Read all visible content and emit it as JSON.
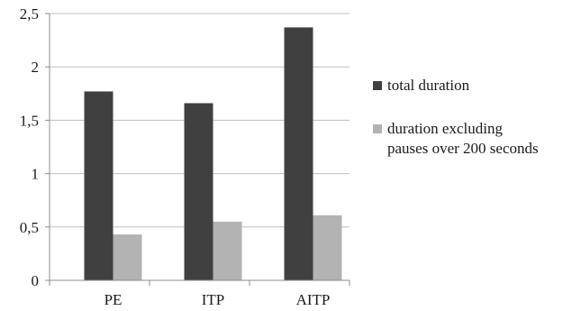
{
  "chart_data": {
    "type": "bar",
    "title": "",
    "xlabel": "",
    "ylabel": "",
    "categories": [
      "PE",
      "ITP",
      "AITP"
    ],
    "series": [
      {
        "name": "total duration",
        "values": [
          1.77,
          1.66,
          2.37
        ],
        "color": "#404040"
      },
      {
        "name": "duration excluding\npauses over 200 seconds",
        "values": [
          0.43,
          0.55,
          0.61
        ],
        "color": "#b3b3b3"
      }
    ],
    "ylim": [
      0,
      2.5
    ],
    "yticks": [
      0,
      0.5,
      1,
      1.5,
      2,
      2.5
    ],
    "ytick_labels": [
      "0",
      "0,5",
      "1",
      "1,5",
      "2",
      "2,5"
    ],
    "grid": true,
    "gridline_color": "#bfbfbf",
    "legend_position": "right"
  }
}
